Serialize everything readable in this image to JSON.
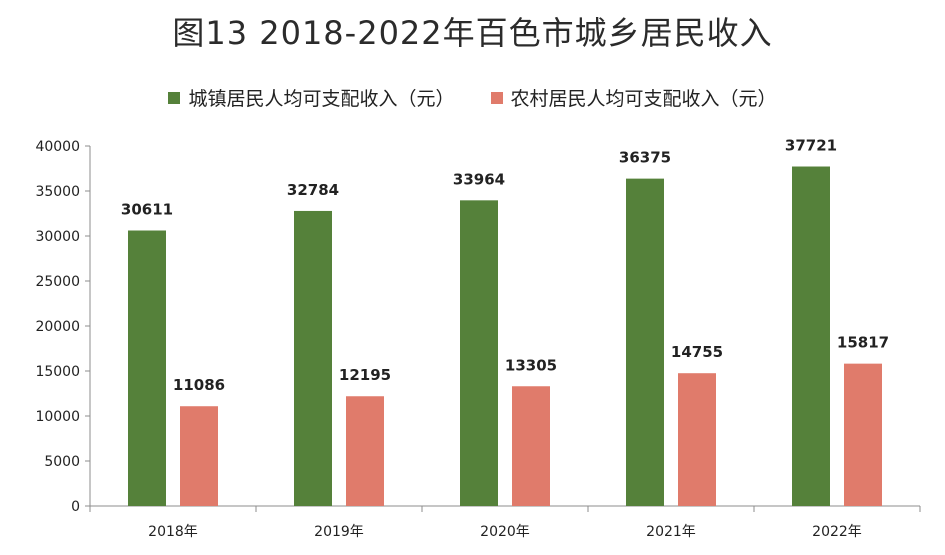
{
  "title": "图13  2018-2022年百色市城乡居民收入",
  "colors": {
    "urban": "#55813a",
    "rural": "#e07b6b",
    "axis": "#8c8c8c"
  },
  "chart_data": {
    "type": "bar",
    "title": "图13  2018-2022年百色市城乡居民收入",
    "xlabel": "",
    "ylabel": "",
    "categories": [
      "2018年",
      "2019年",
      "2020年",
      "2021年",
      "2022年"
    ],
    "series": [
      {
        "name": "城镇居民人均可支配收入（元）",
        "values": [
          30611,
          32784,
          33964,
          36375,
          37721
        ]
      },
      {
        "name": "农村居民人均可支配收入（元）",
        "values": [
          11086,
          12195,
          13305,
          14755,
          15817
        ]
      }
    ],
    "yticks": [
      "0",
      "5000",
      "10000",
      "15000",
      "20000",
      "25000",
      "30000",
      "35000",
      "40000"
    ],
    "ylim": [
      0,
      40000
    ],
    "grid": false,
    "legend": "top"
  }
}
